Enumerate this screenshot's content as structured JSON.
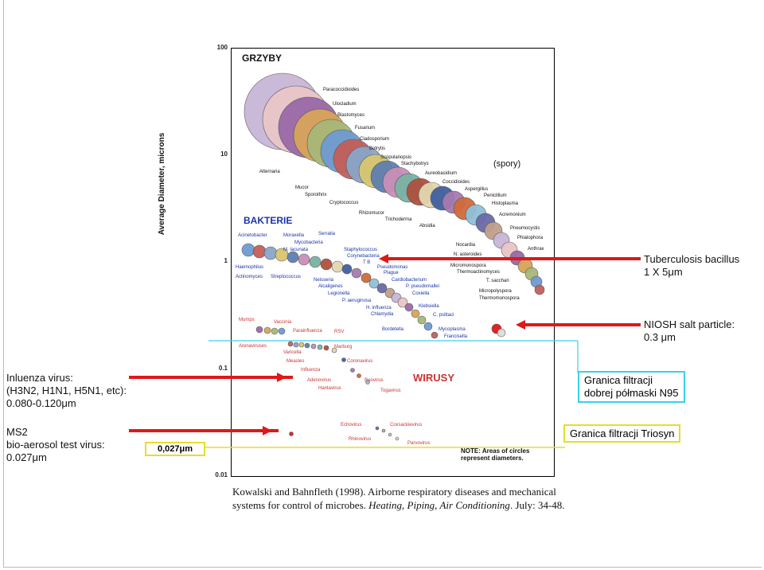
{
  "chart_data": {
    "type": "scatter",
    "ylabel": "Average Diameter, microns",
    "yscale": "log",
    "ylim": [
      0.01,
      100
    ],
    "yticks": [
      "100",
      "10",
      "1",
      "0.1",
      "0.01"
    ],
    "groups": [
      {
        "name": "GRZYBY",
        "color": "#111111",
        "items": [
          "Paracoccidioides",
          "Ulocladium",
          "Blastomyces",
          "Fusarium",
          "Cladosporium",
          "Botrytis",
          "Scopulariopsis",
          "Stachybotrys",
          "Aureobasidium",
          "Coccidioides",
          "Aspergillus",
          "Penicillium",
          "Histoplasma",
          "Acremonium",
          "Alternaria",
          "Mucor",
          "Sporothrix",
          "Cryptococcus",
          "Rhizomucor",
          "Trichoderma",
          "Absidia"
        ]
      },
      {
        "name": "BAKTERIE",
        "color": "#1b35a6",
        "items": [
          "Acinetobacter",
          "Moraxella",
          "Serratia",
          "Mycobacteria",
          "M. lacunata",
          "Staphylococcus",
          "Corynebacteria",
          "T B",
          "Pseudomonas",
          "Plague",
          "Cardiobacterium",
          "P. pseudomallei",
          "Coxiella",
          "Klebsiella",
          "C. psittaci",
          "Mycoplasma",
          "Francisella",
          "Haemophilus",
          "Actinomyces",
          "Streptococcus",
          "Neisseria",
          "Alcaligenes",
          "Legionella",
          "P. aeruginosa",
          "H. influenza",
          "Chlamydia",
          "Bordetella"
        ]
      },
      {
        "name": "(spory)",
        "color": "#111111",
        "items": [
          "Pneumocystis",
          "Phialophora",
          "Anthrax",
          "Nocardia",
          "N. asteroides",
          "Micromonospora",
          "Thermoactinomyces",
          "T. sacchari",
          "Micropolyspora",
          "Thermomonospora"
        ]
      },
      {
        "name": "WIRUSY",
        "color": "#cc3333",
        "items": [
          "Mumps",
          "Vaccinia",
          "Parainfluenza",
          "RSV",
          "Arenaviruses",
          "Varicella",
          "Measles",
          "Influenza",
          "Marburg",
          "Coronavirus",
          "Adenovirus",
          "Hantavirus",
          "Reovirus",
          "Togavirus",
          "Echovirus",
          "Coxsackievirus",
          "Rhinovirus",
          "Parvovirus"
        ]
      }
    ],
    "note": "NOTE: Areas of circles\nrepresent diameters.",
    "annotations": [
      {
        "text": "Tuberculosis bacillus\n1 X 5μm"
      },
      {
        "text": "NIOSH salt particle:\n0.3 μm"
      },
      {
        "text": "Inluenza virus:\n(H3N2, H1N1, H5N1, etc):\n0.080-0.120μm"
      },
      {
        "text": "MS2\nbio-aerosol test virus:\n0.027μm"
      }
    ],
    "boxes": [
      {
        "text": "Granica filtracji\ndobrej półmaski N95"
      },
      {
        "text": "Granica filtracji Triosyn"
      },
      {
        "text": "0,027μm"
      }
    ]
  },
  "citation": {
    "part1": "Kowalski and Bahnfleth (1998). Airborne respiratory diseases and mechanical systems for control of microbes. ",
    "journal": "Heating, Piping, Air Conditioning",
    "part2": ". July: 34-48."
  }
}
